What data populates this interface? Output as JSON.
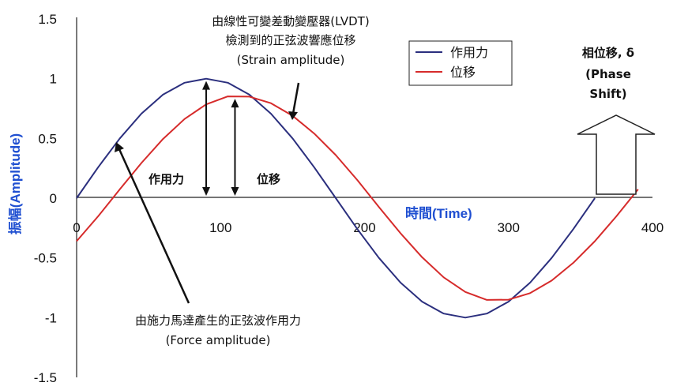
{
  "chart_data": {
    "type": "line",
    "xlabel": "時間(Time)",
    "ylabel": "振幅(Amplitude)",
    "xlim": [
      0,
      400
    ],
    "ylim": [
      -1.5,
      1.5
    ],
    "x_ticks": [
      "0",
      "100",
      "200",
      "300",
      "400"
    ],
    "y_ticks": [
      "1.5",
      "1",
      "0.5",
      "0",
      "-0.5",
      "-1",
      "-1.5"
    ],
    "grid": false,
    "legend_position": "top-right",
    "series": [
      {
        "name": "作用力",
        "color": "#2b2f7e",
        "x": [
          0,
          15,
          30,
          45,
          60,
          75,
          90,
          105,
          120,
          135,
          150,
          165,
          180,
          195,
          210,
          225,
          240,
          255,
          270,
          285,
          300,
          315,
          330,
          345,
          360
        ],
        "y": [
          0,
          0.259,
          0.5,
          0.707,
          0.866,
          0.966,
          1,
          0.966,
          0.866,
          0.707,
          0.5,
          0.259,
          0,
          -0.259,
          -0.5,
          -0.707,
          -0.866,
          -0.966,
          -1,
          -0.966,
          -0.866,
          -0.707,
          -0.5,
          -0.259,
          0
        ]
      },
      {
        "name": "位移",
        "color": "#d62b2b",
        "x": [
          0,
          15,
          30,
          45,
          60,
          75,
          90,
          105,
          120,
          135,
          150,
          165,
          180,
          195,
          210,
          225,
          240,
          255,
          270,
          285,
          300,
          315,
          330,
          345,
          360,
          375,
          390
        ],
        "y": [
          -0.36,
          -0.151,
          0.074,
          0.294,
          0.495,
          0.663,
          0.785,
          0.852,
          0.85,
          0.795,
          0.69,
          0.541,
          0.36,
          0.151,
          -0.074,
          -0.294,
          -0.495,
          -0.663,
          -0.785,
          -0.852,
          -0.85,
          -0.795,
          -0.69,
          -0.541,
          -0.36,
          -0.151,
          0.074
        ]
      }
    ],
    "annotations": {
      "lvdt_line1": "由線性可變差動變壓器(LVDT)",
      "lvdt_line2": "檢測到的正弦波響應位移",
      "lvdt_line3": "(Strain amplitude)",
      "force_line1": "由施力馬達產生的正弦波作用力",
      "force_line2": "(Force amplitude)",
      "force_arrow_label": "作用力",
      "disp_arrow_label": "位移",
      "phase_line1": "相位移, δ",
      "phase_line2": "(Phase",
      "phase_line3": "Shift)"
    }
  }
}
